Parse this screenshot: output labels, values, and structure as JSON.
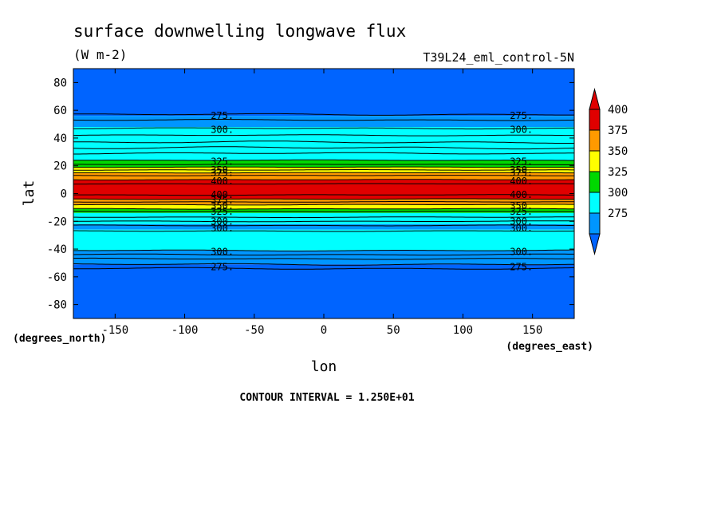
{
  "chart_data": {
    "type": "heatmap",
    "title": "surface downwelling longwave flux",
    "units": "(W m-2)",
    "run_label": "T39L24_eml_control-5N",
    "xlabel": "lon",
    "ylabel": "lat",
    "x_unit_label": "(degrees_east)",
    "y_unit_label": "(degrees_north)",
    "xlim": [
      -180,
      180
    ],
    "ylim": [
      -90,
      90
    ],
    "x_ticks": [
      -150,
      -100,
      -50,
      0,
      50,
      100,
      150
    ],
    "x_tick_labels": [
      "-150",
      "-100",
      "-50",
      "0",
      "50",
      "100",
      "150"
    ],
    "y_ticks": [
      80,
      60,
      40,
      20,
      0,
      -20,
      -40,
      -60,
      -80
    ],
    "y_tick_labels": [
      "80",
      "60",
      "40",
      "20",
      "0",
      "-20",
      "-40",
      "-60",
      "-80"
    ],
    "contour_interval_text": "CONTOUR INTERVAL = 1.250E+01",
    "legend_levels": [
      400,
      375,
      350,
      325,
      300,
      275
    ],
    "legend_labels": [
      "400",
      "375",
      "350",
      "325",
      "300",
      "275"
    ],
    "legend_colors": [
      "#e00000",
      "#ff9a00",
      "#ffff00",
      "#00d800",
      "#00ffff",
      "#0096ff"
    ],
    "legend_extend_colors": {
      "above": "#e00000",
      "below": "#0064ff"
    },
    "bands": [
      {
        "lat_from": 90,
        "lat_to": 56,
        "color": "#0064ff"
      },
      {
        "lat_from": 56,
        "lat_to": 48,
        "color": "#0096ff"
      },
      {
        "lat_from": 48,
        "lat_to": 24,
        "color": "#00ffff"
      },
      {
        "lat_from": 24,
        "lat_to": 19,
        "color": "#00d800"
      },
      {
        "lat_from": 19,
        "lat_to": 15,
        "color": "#ffff00"
      },
      {
        "lat_from": 15,
        "lat_to": 10,
        "color": "#ff9a00"
      },
      {
        "lat_from": 10,
        "lat_to": -4,
        "color": "#e00000"
      },
      {
        "lat_from": -4,
        "lat_to": -8,
        "color": "#ff9a00"
      },
      {
        "lat_from": -8,
        "lat_to": -11,
        "color": "#ffff00"
      },
      {
        "lat_from": -11,
        "lat_to": -14,
        "color": "#00d800"
      },
      {
        "lat_from": -14,
        "lat_to": -22,
        "color": "#00ffff"
      },
      {
        "lat_from": -22,
        "lat_to": -26,
        "color": "#0096ff"
      },
      {
        "lat_from": -26,
        "lat_to": -41,
        "color": "#00ffff"
      },
      {
        "lat_from": -41,
        "lat_to": -51,
        "color": "#0096ff"
      },
      {
        "lat_from": -51,
        "lat_to": -90,
        "color": "#0064ff"
      }
    ],
    "contours": [
      {
        "lat": 57,
        "amp": 1.2
      },
      {
        "lat": 53,
        "amp": 0.8
      },
      {
        "lat": 47,
        "amp": 0.8
      },
      {
        "lat": 42,
        "amp": 0.8
      },
      {
        "lat": 37,
        "amp": 1.5
      },
      {
        "lat": 33,
        "amp": 1.5
      },
      {
        "lat": 29,
        "amp": 1.0
      },
      {
        "lat": 24,
        "amp": 0.5
      },
      {
        "lat": 21,
        "amp": 0.4
      },
      {
        "lat": 19,
        "amp": 0.4
      },
      {
        "lat": 17,
        "amp": 0.4
      },
      {
        "lat": 15,
        "amp": 0.4
      },
      {
        "lat": 13,
        "amp": 0.4
      },
      {
        "lat": 10,
        "amp": 0.4
      },
      {
        "lat": 7,
        "amp": 0.4
      },
      {
        "lat": -1,
        "amp": 0.5
      },
      {
        "lat": -4,
        "amp": 0.5
      },
      {
        "lat": -6,
        "amp": 0.5
      },
      {
        "lat": -8,
        "amp": 0.5
      },
      {
        "lat": -11,
        "amp": 0.5
      },
      {
        "lat": -13,
        "amp": 0.5
      },
      {
        "lat": -17,
        "amp": 0.5
      },
      {
        "lat": -20,
        "amp": 0.6
      },
      {
        "lat": -23,
        "amp": 0.6
      },
      {
        "lat": -27,
        "amp": 0.6
      },
      {
        "lat": -41,
        "amp": 0.8
      },
      {
        "lat": -44,
        "amp": 0.8
      },
      {
        "lat": -47,
        "amp": 0.8
      },
      {
        "lat": -51,
        "amp": 1.2
      },
      {
        "lat": -54,
        "amp": 1.2
      }
    ],
    "contour_labels": [
      {
        "text": "275.",
        "lon": -73,
        "lat": 56
      },
      {
        "text": "275.",
        "lon": 142,
        "lat": 56
      },
      {
        "text": "300.",
        "lon": -73,
        "lat": 46
      },
      {
        "text": "300.",
        "lon": 142,
        "lat": 46
      },
      {
        "text": "325.",
        "lon": -73,
        "lat": 23
      },
      {
        "text": "325.",
        "lon": 142,
        "lat": 23
      },
      {
        "text": "350.",
        "lon": -73,
        "lat": 17
      },
      {
        "text": "350.",
        "lon": 142,
        "lat": 17
      },
      {
        "text": "375.",
        "lon": -73,
        "lat": 15
      },
      {
        "text": "375.",
        "lon": 142,
        "lat": 15
      },
      {
        "text": "400.",
        "lon": -73,
        "lat": 9
      },
      {
        "text": "400.",
        "lon": 142,
        "lat": 9
      },
      {
        "text": "400.",
        "lon": -73,
        "lat": -1
      },
      {
        "text": "400.",
        "lon": 142,
        "lat": -1
      },
      {
        "text": "375.",
        "lon": -73,
        "lat": -5
      },
      {
        "text": "350.",
        "lon": -73,
        "lat": -9
      },
      {
        "text": "350.",
        "lon": 142,
        "lat": -9
      },
      {
        "text": "325.",
        "lon": -73,
        "lat": -13
      },
      {
        "text": "325.",
        "lon": 142,
        "lat": -13
      },
      {
        "text": "300.",
        "lon": -73,
        "lat": -20
      },
      {
        "text": "300.",
        "lon": 142,
        "lat": -20
      },
      {
        "text": "300.",
        "lon": -73,
        "lat": -25
      },
      {
        "text": "300.",
        "lon": 142,
        "lat": -25
      },
      {
        "text": "300.",
        "lon": -73,
        "lat": -42
      },
      {
        "text": "300.",
        "lon": 142,
        "lat": -42
      },
      {
        "text": "275.",
        "lon": -73,
        "lat": -53
      },
      {
        "text": "275.",
        "lon": 142,
        "lat": -53
      }
    ]
  }
}
